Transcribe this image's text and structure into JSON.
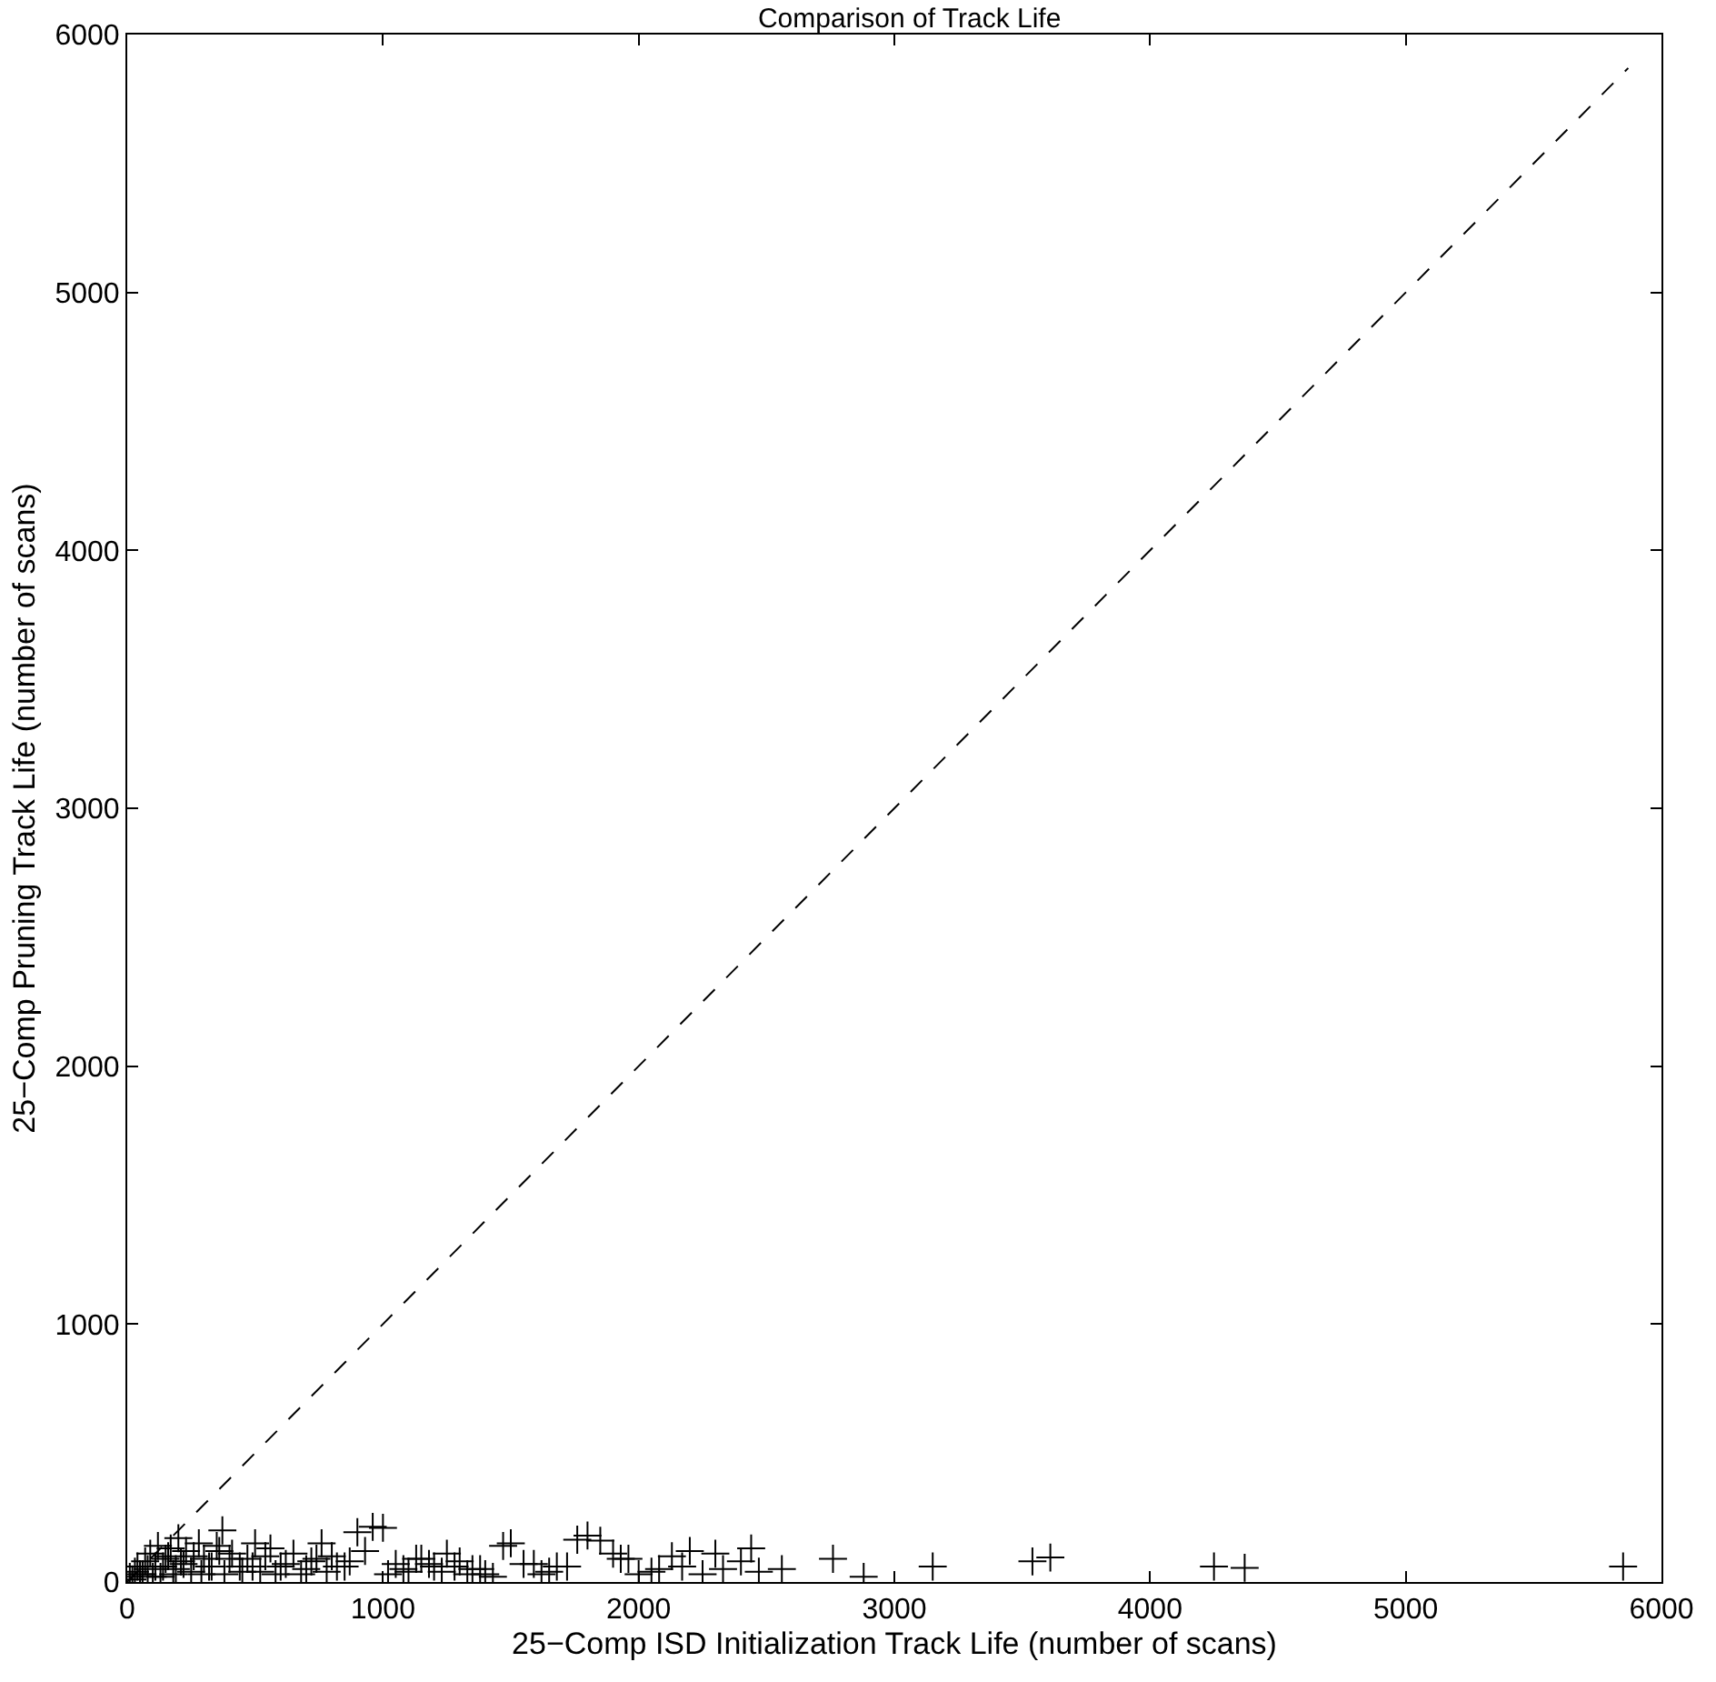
{
  "chart_data": {
    "type": "scatter",
    "title": "Comparison of Track Life",
    "xlabel": "25−Comp ISD Initialization Track Life (number of scans)",
    "ylabel": "25−Comp Pruning Track Life (number of scans)",
    "xlim": [
      0,
      6000
    ],
    "ylim": [
      0,
      6000
    ],
    "xticks": [
      0,
      1000,
      2000,
      3000,
      4000,
      5000,
      6000
    ],
    "yticks": [
      0,
      1000,
      2000,
      3000,
      4000,
      5000,
      6000
    ],
    "grid": false,
    "legend": false,
    "series": [
      {
        "marker": "cross",
        "color": "#000000",
        "x": [
          5850,
          4250,
          4370,
          3540,
          3610,
          3150,
          2880,
          2760,
          2560,
          2470,
          2440,
          2400,
          2300,
          2200,
          2130,
          2080,
          2000,
          1930,
          1850,
          1800,
          1720,
          1650,
          1590,
          1500,
          1470,
          1400,
          1350,
          1300,
          1250,
          1200,
          1150,
          1100,
          1050,
          1000,
          960,
          930,
          900,
          850,
          800,
          760,
          720,
          680,
          650,
          600,
          560,
          520,
          500,
          470,
          440,
          410,
          380,
          372,
          350,
          320,
          300,
          280,
          250,
          230,
          210,
          200,
          180,
          160,
          140,
          120,
          100,
          80,
          60,
          40,
          20,
          10,
          30,
          50,
          70,
          90,
          110,
          130,
          150,
          170,
          190,
          220,
          260,
          290,
          330,
          360,
          400,
          450,
          490,
          540,
          580,
          620,
          700,
          740,
          780,
          820,
          870,
          1020,
          1080,
          1130,
          1180,
          1230,
          1280,
          1330,
          1380,
          1430,
          1550,
          1620,
          1680,
          1760,
          1900,
          1960,
          2050,
          2170,
          2250,
          2330
        ],
        "values": [
          60,
          60,
          55,
          80,
          95,
          60,
          20,
          90,
          50,
          40,
          130,
          80,
          110,
          120,
          100,
          50,
          30,
          90,
          160,
          180,
          60,
          40,
          70,
          150,
          140,
          30,
          50,
          80,
          110,
          60,
          90,
          40,
          70,
          210,
          214,
          120,
          193,
          60,
          100,
          150,
          80,
          30,
          110,
          60,
          130,
          40,
          150,
          90,
          60,
          110,
          30,
          200,
          140,
          60,
          90,
          150,
          40,
          120,
          80,
          170,
          30,
          100,
          60,
          140,
          20,
          50,
          30,
          60,
          10,
          20,
          40,
          30,
          80,
          110,
          60,
          20,
          90,
          130,
          50,
          70,
          100,
          30,
          60,
          120,
          90,
          40,
          60,
          100,
          30,
          70,
          50,
          90,
          40,
          60,
          80,
          30,
          50,
          90,
          70,
          40,
          60,
          30,
          50,
          20,
          70,
          30,
          60,
          164,
          110,
          90,
          40,
          60,
          30,
          50
        ]
      },
      {
        "type": "line",
        "line_style": "dashed",
        "color": "#000000",
        "x": [
          0,
          5870
        ],
        "values": [
          0,
          5870
        ]
      }
    ]
  }
}
